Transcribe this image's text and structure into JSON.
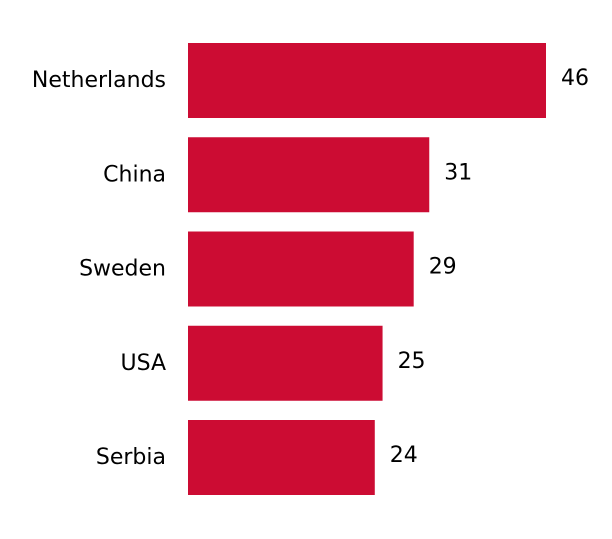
{
  "chart_data": {
    "type": "bar",
    "orientation": "horizontal",
    "categories": [
      "Netherlands",
      "China",
      "Sweden",
      "USA",
      "Serbia"
    ],
    "values": [
      46,
      31,
      29,
      25,
      24
    ],
    "value_labels": [
      "46",
      "31",
      "29",
      "25",
      "24"
    ],
    "title": "",
    "xlabel": "",
    "ylabel": "",
    "xlim": [
      0,
      46
    ],
    "grid": false,
    "axes_visible": false,
    "bar_color": "#cc0c33"
  }
}
